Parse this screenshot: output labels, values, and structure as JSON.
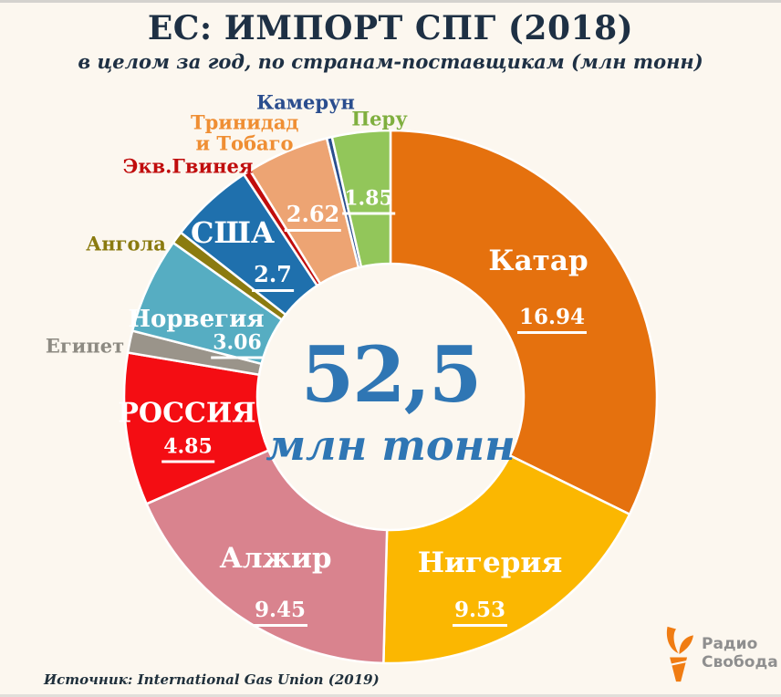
{
  "header": {
    "title": "ЕС: ИМПОРТ СПГ (2018)",
    "subtitle": "в целом за год, по странам-поставщикам (млн тонн)"
  },
  "center": {
    "total": "52,5",
    "unit": "млн тонн"
  },
  "chart_data": {
    "type": "pie",
    "subtype": "donut",
    "title": "ЕС: ИМПОРТ СПГ (2018)",
    "subtitle": "в целом за год, по странам-поставщикам (млн тонн)",
    "total_value": 52.5,
    "total_display": "52,5",
    "units": "млн тонн",
    "start_angle_deg": 0,
    "direction": "clockwise",
    "slices": [
      {
        "id": "qatar",
        "name": "Катар",
        "value": 16.94,
        "value_label": "16.94",
        "color": "#e5710e",
        "label_style": "inside"
      },
      {
        "id": "nigeria",
        "name": "Нигерия",
        "value": 9.53,
        "value_label": "9.53",
        "color": "#fbb701",
        "label_style": "inside"
      },
      {
        "id": "algeria",
        "name": "Алжир",
        "value": 9.45,
        "value_label": "9.45",
        "color": "#d9838e",
        "label_style": "inside"
      },
      {
        "id": "russia",
        "name": "РОССИЯ",
        "value": 4.85,
        "value_label": "4.85",
        "color": "#f40d13",
        "label_style": "inside"
      },
      {
        "id": "egypt",
        "name": "Египет",
        "value": 0.7,
        "value_label": null,
        "color": "#9a948a",
        "label_style": "outside",
        "label_color": "#8d8a82"
      },
      {
        "id": "norway",
        "name": "Норвегия",
        "value": 3.06,
        "value_label": "3.06",
        "color": "#56adc2",
        "label_style": "inside"
      },
      {
        "id": "angola",
        "name": "Ангола",
        "value": 0.4,
        "value_label": null,
        "color": "#8b7b10",
        "label_style": "outside",
        "label_color": "#8a7a0f"
      },
      {
        "id": "usa",
        "name": "США",
        "value": 2.7,
        "value_label": "2.7",
        "color": "#1f70ad",
        "label_style": "inside"
      },
      {
        "id": "eq-guinea",
        "name": "Экв.Гвинея",
        "value": 0.23,
        "value_label": null,
        "color": "#c00d0d",
        "label_style": "outside",
        "label_color": "#c00d0d"
      },
      {
        "id": "trinidad-tobago",
        "name": "Тринидад и Тобаго",
        "value": 2.62,
        "value_label": "2.62",
        "color": "#eda473",
        "label_style": "outside-name-inside-value",
        "label_color": "#ef8e33"
      },
      {
        "id": "cameroon",
        "name": "Камерун",
        "value": 0.17,
        "value_label": null,
        "color": "#2a4e8e",
        "label_style": "outside",
        "label_color": "#2a4d8e"
      },
      {
        "id": "peru",
        "name": "Перу",
        "value": 1.85,
        "value_label": "1.85",
        "color": "#92c65a",
        "label_style": "outside-name-inside-value",
        "label_color": "#7faf3f"
      }
    ]
  },
  "footer": {
    "source": "Источник: International Gas Union (2019)"
  },
  "logo": {
    "line1": "Радио",
    "line2": "Свобода"
  },
  "palette": {
    "background": "#fcf7ef",
    "title_text": "#1e3044",
    "center_text": "#2f76b4",
    "source_text": "#20303c",
    "slice_separator": "#ffffff",
    "logo_orange": "#f07c12",
    "logo_text": "#8f8f8f"
  }
}
